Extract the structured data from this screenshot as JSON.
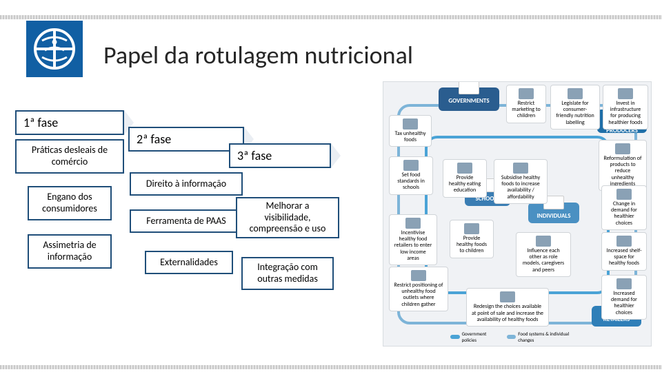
{
  "title": "Papel da rotulagem nutricional",
  "colors": {
    "border_blue": "#1f4e79",
    "header_bg": "#ffffff",
    "chev_fill": "#3b6ea5",
    "text": "#262626",
    "info_bg": "#f0f2f5",
    "hub_gov": "#2a5d8f",
    "hub_school": "#3a7db3",
    "hub_indiv": "#4a90c2",
    "hub_prod": "#1f6fa8",
    "hub_retail": "#2f7fb8",
    "pipe_a": "#4aa3d6",
    "pipe_b": "#7db4d8"
  },
  "phases": [
    {
      "header": "1ª fase",
      "boxes": [
        "Práticas desleais de comércio",
        "Engano dos consumidores",
        "Assimetria de informação"
      ]
    },
    {
      "header": "2ª fase",
      "boxes": [
        "Direito à informação",
        "Ferramenta de PAAS",
        "Externalidades"
      ]
    },
    {
      "header": "3ª fase",
      "boxes": [
        "Melhorar a visibilidade, compreensão e uso",
        "Integração com outras medidas"
      ]
    }
  ],
  "infographic": {
    "hubs": {
      "governments": "GOVERNMENTS",
      "schools": "SCHOOLS",
      "individuals": "INDIVIDUALS",
      "food_producers": "FOOD PRODUCERS",
      "retailers": "RETAILERS"
    },
    "nodes": {
      "tax": "Tax unhealthy foods",
      "restrict": "Restrict marketing to children",
      "legislate": "Legislate for consumer-friendly nutrition labelling",
      "invest": "Invest in infrastructure for producing healthier foods",
      "reformulate": "Reformulation of products to reduce unhealthy ingredients",
      "standards": "Set food standards in schools",
      "educate": "Provide healthy eating education",
      "subsidise": "Subsidise healthy foods to increase availability / affordability",
      "change_demand": "Change in demand for healthier choices",
      "incentivise": "Incentivise healthy food retailers to enter low income areas",
      "provide_healthy": "Provide healthy foods to children",
      "influence": "Influence each other as role models, caregivers and peers",
      "shelf": "Increased shelf-space for healthy foods",
      "restrict_pos": "Restrict positioning of unhealthy food outlets where children gather",
      "redesign": "Redesign the choices available at point of sale and increase the availability of healthy foods",
      "increased_demand": "Increased demand for healthier choices"
    },
    "legend": {
      "gov": "Government policies",
      "sys": "Food systems & individual changes"
    }
  }
}
